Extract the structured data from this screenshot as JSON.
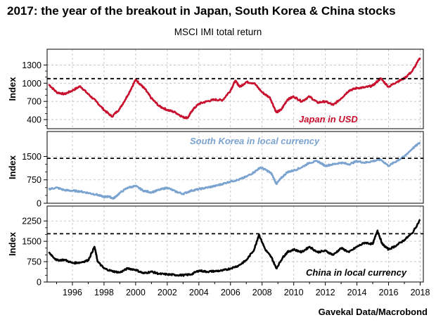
{
  "title": "2017: the year of the breakout in Japan, South Korea & China stocks",
  "subtitle": "MSCI IMI total return",
  "source": "Gavekal Data/Macrobond",
  "chart_data": [
    {
      "type": "line",
      "name": "japan",
      "ylabel": "Index",
      "annotation": "Japan in USD",
      "color": "#c8102e",
      "ylim": [
        250,
        1560
      ],
      "yticks": [
        400,
        700,
        1000,
        1300
      ],
      "reference_line": 1075,
      "x": [
        1994.5,
        1995.0,
        1995.5,
        1996.0,
        1996.5,
        1997.0,
        1997.5,
        1998.0,
        1998.5,
        1999.0,
        1999.5,
        2000.0,
        2000.3,
        2000.6,
        2001.0,
        2001.5,
        2002.0,
        2002.5,
        2003.0,
        2003.3,
        2003.6,
        2004.0,
        2004.5,
        2005.0,
        2005.5,
        2006.0,
        2006.3,
        2006.6,
        2007.0,
        2007.5,
        2008.0,
        2008.5,
        2008.9,
        2009.2,
        2009.6,
        2010.0,
        2010.5,
        2011.0,
        2011.5,
        2012.0,
        2012.5,
        2013.0,
        2013.5,
        2014.0,
        2014.5,
        2015.0,
        2015.5,
        2016.0,
        2016.5,
        2017.0,
        2017.5,
        2018.0
      ],
      "values": [
        980,
        850,
        820,
        880,
        950,
        820,
        700,
        560,
        450,
        580,
        800,
        1060,
        980,
        900,
        750,
        620,
        560,
        520,
        440,
        430,
        560,
        660,
        700,
        730,
        720,
        880,
        1040,
        940,
        1020,
        1000,
        850,
        760,
        520,
        560,
        730,
        780,
        700,
        780,
        680,
        700,
        640,
        750,
        880,
        920,
        930,
        960,
        1080,
        940,
        1020,
        1080,
        1200,
        1420
      ]
    },
    {
      "type": "line",
      "name": "korea",
      "ylabel": "Index",
      "annotation": "South Korea in local currency",
      "color": "#7ba3d0",
      "ylim": [
        0,
        2300
      ],
      "yticks": [
        0,
        750,
        1500
      ],
      "reference_line": 1440,
      "x": [
        1994.5,
        1995.0,
        1995.5,
        1996.0,
        1996.5,
        1997.0,
        1997.5,
        1998.0,
        1998.3,
        1998.6,
        1999.0,
        1999.5,
        2000.0,
        2000.5,
        2001.0,
        2001.5,
        2002.0,
        2002.5,
        2003.0,
        2003.5,
        2004.0,
        2004.5,
        2005.0,
        2005.5,
        2006.0,
        2006.5,
        2007.0,
        2007.5,
        2007.9,
        2008.3,
        2008.6,
        2008.9,
        2009.2,
        2009.6,
        2010.0,
        2010.5,
        2011.0,
        2011.5,
        2012.0,
        2012.5,
        2013.0,
        2013.5,
        2014.0,
        2014.5,
        2015.0,
        2015.5,
        2016.0,
        2016.5,
        2017.0,
        2017.5,
        2018.0
      ],
      "values": [
        450,
        500,
        420,
        400,
        380,
        330,
        280,
        200,
        220,
        150,
        330,
        500,
        550,
        400,
        350,
        430,
        500,
        380,
        300,
        400,
        450,
        500,
        550,
        620,
        700,
        750,
        850,
        1000,
        1150,
        1050,
        950,
        620,
        800,
        1000,
        1050,
        1150,
        1300,
        1350,
        1200,
        1250,
        1300,
        1250,
        1350,
        1300,
        1350,
        1400,
        1200,
        1350,
        1500,
        1750,
        1950
      ]
    },
    {
      "type": "line",
      "name": "china",
      "ylabel": "Index",
      "annotation": "China in local currency",
      "color": "#000000",
      "ylim": [
        0,
        2800
      ],
      "yticks": [
        0,
        750,
        1500,
        2250
      ],
      "reference_line": 1780,
      "x": [
        1994.5,
        1995.0,
        1995.5,
        1996.0,
        1996.5,
        1997.0,
        1997.4,
        1997.6,
        1998.0,
        1998.5,
        1999.0,
        1999.5,
        2000.0,
        2000.5,
        2001.0,
        2001.5,
        2002.0,
        2002.5,
        2003.0,
        2003.5,
        2004.0,
        2004.5,
        2005.0,
        2005.5,
        2006.0,
        2006.5,
        2007.0,
        2007.5,
        2007.8,
        2008.2,
        2008.6,
        2008.9,
        2009.3,
        2009.6,
        2010.0,
        2010.5,
        2011.0,
        2011.5,
        2012.0,
        2012.5,
        2013.0,
        2013.5,
        2014.0,
        2014.5,
        2015.0,
        2015.3,
        2015.6,
        2016.0,
        2016.5,
        2017.0,
        2017.5,
        2018.0
      ],
      "values": [
        1100,
        800,
        820,
        700,
        720,
        800,
        1300,
        750,
        500,
        400,
        350,
        500,
        450,
        320,
        380,
        300,
        280,
        260,
        250,
        280,
        420,
        380,
        400,
        420,
        500,
        600,
        800,
        1200,
        1750,
        1200,
        900,
        500,
        900,
        1100,
        1200,
        1100,
        1300,
        1100,
        1150,
        1000,
        1250,
        1100,
        1300,
        1450,
        1400,
        1900,
        1400,
        1200,
        1350,
        1550,
        1800,
        2300
      ]
    }
  ],
  "xaxis": {
    "xlim": [
      1994.4,
      2018.2
    ],
    "ticks": [
      1996,
      1998,
      2000,
      2002,
      2004,
      2006,
      2008,
      2010,
      2012,
      2014,
      2016,
      2018
    ]
  }
}
